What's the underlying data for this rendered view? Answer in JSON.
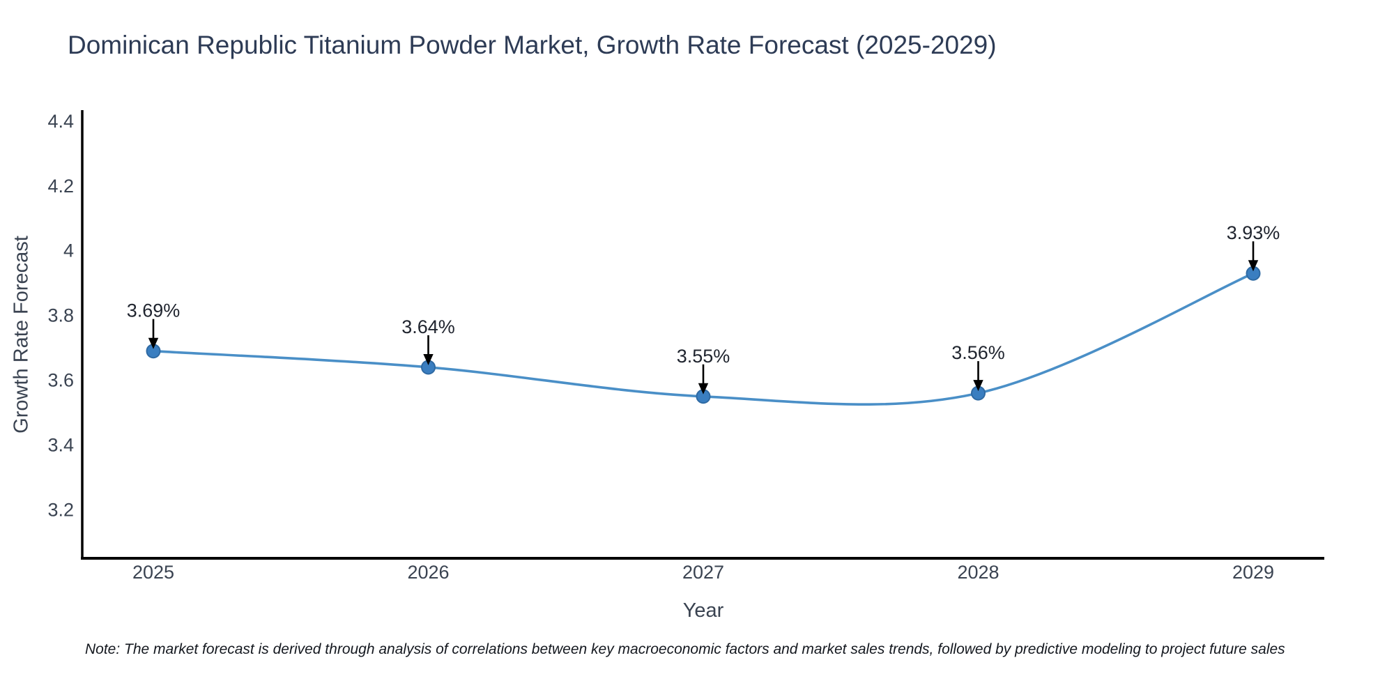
{
  "title": "Dominican Republic Titanium Powder Market, Growth Rate Forecast (2025-2029)",
  "note": "Note: The market forecast is derived through analysis of correlations between key macroeconomic factors and market sales trends, followed by predictive modeling to project future sales",
  "colors": {
    "title": "#2d3b55",
    "tick_label": "#3a4351",
    "axis_spine": "#000000",
    "line": "#4a8fc7",
    "marker_fill": "#3a7ec0",
    "marker_edge": "#2f6aa3",
    "annotation_text": "#20252f",
    "annotation_arrow": "#000000",
    "note_text": "#14181f"
  },
  "chart_data": {
    "type": "line",
    "title": "Dominican Republic Titanium Powder Market, Growth Rate Forecast (2025-2029)",
    "xlabel": "Year",
    "ylabel": "Growth Rate Forecast",
    "x": [
      2025,
      2026,
      2027,
      2028,
      2029
    ],
    "series": [
      {
        "name": "Growth Rate Forecast",
        "values": [
          3.69,
          3.64,
          3.55,
          3.56,
          3.93
        ],
        "point_labels": [
          "3.69%",
          "3.64%",
          "3.55%",
          "3.56%",
          "3.93%"
        ]
      }
    ],
    "xticks": [
      "2025",
      "2026",
      "2027",
      "2028",
      "2029"
    ],
    "yticks": [
      3.2,
      3.4,
      3.6,
      3.8,
      4,
      4.2,
      4.4
    ],
    "ylim": [
      3.05,
      4.43
    ],
    "grid": false,
    "legend_position": "none",
    "line_shape": "spline",
    "marker": "circle",
    "annotation_style": "value-label-with-down-arrow"
  }
}
